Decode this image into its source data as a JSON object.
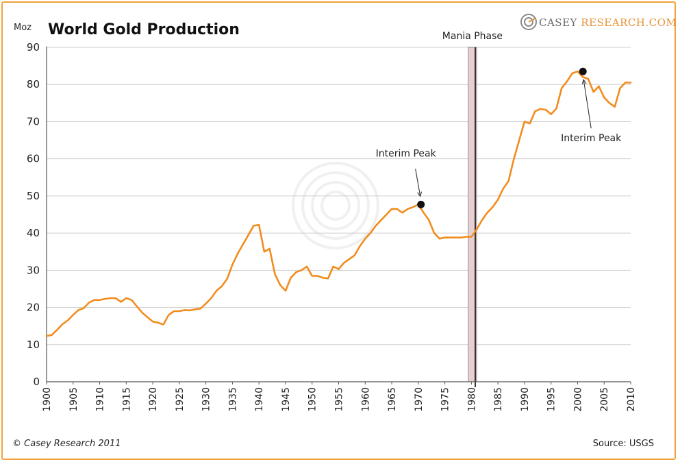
{
  "chart_data": {
    "type": "line",
    "title": "World Gold Production",
    "unit_label": "Moz",
    "ylim": [
      0,
      90
    ],
    "yticks": [
      0,
      10,
      20,
      30,
      40,
      50,
      60,
      70,
      80,
      90
    ],
    "xlim": [
      1900,
      2010
    ],
    "xticks": [
      1900,
      1905,
      1910,
      1915,
      1920,
      1925,
      1930,
      1935,
      1940,
      1945,
      1950,
      1955,
      1960,
      1965,
      1970,
      1975,
      1980,
      1985,
      1990,
      1995,
      2000,
      2005,
      2010
    ],
    "grid": "horizontal",
    "line_color": "#f28c1e",
    "series": [
      {
        "x": [
          1900,
          1901,
          1902,
          1903,
          1904,
          1905,
          1906,
          1907,
          1908,
          1909,
          1910,
          1911,
          1912,
          1913,
          1914,
          1915,
          1916,
          1917,
          1918,
          1919,
          1920,
          1921,
          1922,
          1923,
          1924,
          1925,
          1926,
          1927,
          1928,
          1929,
          1930,
          1931,
          1932,
          1933,
          1934,
          1935,
          1936,
          1937,
          1938,
          1939,
          1940,
          1941,
          1942,
          1943,
          1944,
          1945,
          1946,
          1947,
          1948,
          1949,
          1950,
          1951,
          1952,
          1953,
          1954,
          1955,
          1956,
          1957,
          1958,
          1959,
          1960,
          1961,
          1962,
          1963,
          1964,
          1965,
          1966,
          1967,
          1968,
          1969,
          1970,
          1971,
          1972,
          1973,
          1974,
          1975,
          1976,
          1977,
          1978,
          1979,
          1980,
          1981,
          1982,
          1983,
          1984,
          1985,
          1986,
          1987,
          1988,
          1989,
          1990,
          1991,
          1992,
          1993,
          1994,
          1995,
          1996,
          1997,
          1998,
          1999,
          2000,
          2001,
          2002,
          2003,
          2004,
          2005,
          2006,
          2007,
          2008,
          2009,
          2010
        ],
        "values": [
          12.3,
          12.6,
          14.0,
          15.5,
          16.5,
          18.0,
          19.3,
          19.8,
          21.3,
          22.0,
          22.0,
          22.3,
          22.5,
          22.5,
          21.5,
          22.5,
          22.0,
          20.3,
          18.6,
          17.4,
          16.2,
          15.9,
          15.4,
          18.0,
          19.0,
          19.0,
          19.3,
          19.2,
          19.5,
          19.7,
          21.0,
          22.5,
          24.5,
          25.7,
          27.7,
          31.5,
          34.5,
          37.0,
          39.5,
          42.0,
          42.2,
          35.0,
          35.8,
          29.0,
          26.0,
          24.5,
          28.0,
          29.5,
          30.0,
          31.0,
          28.5,
          28.5,
          28.0,
          27.8,
          31.0,
          30.3,
          32.0,
          33.0,
          34.0,
          36.5,
          38.5,
          40.0,
          42.0,
          43.5,
          45.0,
          46.5,
          46.5,
          45.5,
          46.5,
          47.0,
          47.7,
          45.5,
          43.5,
          40.0,
          38.5,
          38.8,
          38.8,
          38.8,
          38.8,
          39.0,
          39.0,
          41.0,
          43.5,
          45.5,
          47.0,
          49.0,
          52.0,
          54.0,
          60.0,
          65.0,
          70.0,
          69.5,
          72.8,
          73.4,
          73.2,
          72.0,
          73.5,
          79.0,
          80.8,
          83.0,
          83.5,
          82.0,
          81.5,
          78.0,
          79.5,
          76.5,
          75.0,
          74.0,
          79.0,
          80.5,
          80.5
        ]
      }
    ],
    "highlight_band": {
      "label": "Mania Phase",
      "x_start": 1979.8,
      "x_end": 1980.6,
      "fill": "#e9cfd2"
    },
    "annotations": [
      {
        "label": "Interim Peak",
        "x": 1970.5,
        "y": 47.7
      },
      {
        "label": "Interim Peak",
        "x": 2001,
        "y": 83.5
      }
    ]
  },
  "logo": {
    "text_primary": "CASEY ",
    "text_accent": "RESEARCH.COM"
  },
  "footer": {
    "copyright": "© Casey Research 2011",
    "source": "Source:  USGS"
  }
}
